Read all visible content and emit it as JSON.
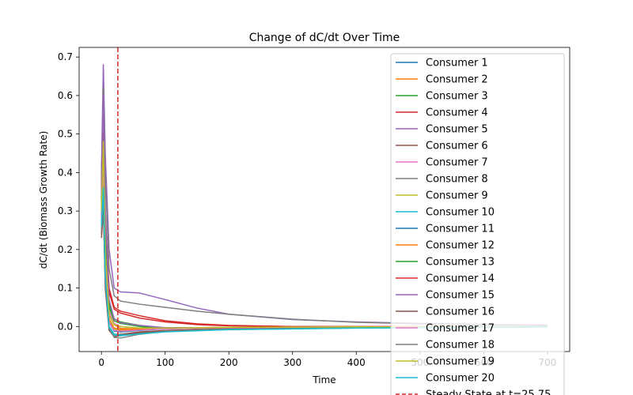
{
  "chart_data": {
    "type": "line",
    "title": "Change of dC/dt Over Time",
    "xlabel": "Time",
    "ylabel": "dC/dt (Biomass Growth Rate)",
    "xlim": [
      -35,
      735
    ],
    "ylim": [
      -0.065,
      0.725
    ],
    "xticks": [
      0,
      100,
      200,
      300,
      400,
      500,
      600,
      700
    ],
    "yticks": [
      0.0,
      0.1,
      0.2,
      0.3,
      0.4,
      0.5,
      0.6,
      0.7
    ],
    "grid": false,
    "legend_position": "top-right",
    "vline": {
      "x": 25.75,
      "label": "Steady State at t=25.75",
      "color": "#d62728",
      "style": "dashed"
    },
    "series": [
      {
        "name": "Consumer 1",
        "color": "#1f77b4",
        "points": [
          [
            0,
            0.3
          ],
          [
            3,
            0.42
          ],
          [
            6,
            0.18
          ],
          [
            12,
            0.02
          ],
          [
            20,
            -0.01
          ],
          [
            30,
            -0.012
          ],
          [
            60,
            -0.008
          ],
          [
            100,
            -0.005
          ],
          [
            200,
            -0.002
          ],
          [
            400,
            -0.001
          ],
          [
            700,
            0.0
          ]
        ]
      },
      {
        "name": "Consumer 2",
        "color": "#ff7f0e",
        "points": [
          [
            0,
            0.28
          ],
          [
            3,
            0.45
          ],
          [
            6,
            0.2
          ],
          [
            12,
            0.03
          ],
          [
            20,
            0.005
          ],
          [
            30,
            -0.005
          ],
          [
            60,
            -0.006
          ],
          [
            100,
            -0.004
          ],
          [
            200,
            -0.002
          ],
          [
            400,
            -0.001
          ],
          [
            700,
            0.0
          ]
        ]
      },
      {
        "name": "Consumer 3",
        "color": "#2ca02c",
        "points": [
          [
            0,
            0.32
          ],
          [
            3,
            0.52
          ],
          [
            6,
            0.25
          ],
          [
            12,
            0.06
          ],
          [
            20,
            0.02
          ],
          [
            30,
            0.012
          ],
          [
            60,
            0.003
          ],
          [
            100,
            -0.004
          ],
          [
            200,
            -0.004
          ],
          [
            400,
            -0.002
          ],
          [
            700,
            0.0
          ]
        ]
      },
      {
        "name": "Consumer 4",
        "color": "#d62728",
        "points": [
          [
            0,
            0.35
          ],
          [
            3,
            0.5
          ],
          [
            6,
            0.28
          ],
          [
            12,
            0.1
          ],
          [
            20,
            0.05
          ],
          [
            30,
            0.04
          ],
          [
            60,
            0.028
          ],
          [
            100,
            0.015
          ],
          [
            150,
            0.007
          ],
          [
            200,
            0.003
          ],
          [
            300,
            0.0
          ],
          [
            400,
            -0.001
          ],
          [
            700,
            0.0
          ]
        ]
      },
      {
        "name": "Consumer 5",
        "color": "#9467bd",
        "points": [
          [
            0,
            0.4
          ],
          [
            3,
            0.68
          ],
          [
            6,
            0.45
          ],
          [
            12,
            0.2
          ],
          [
            20,
            0.1
          ],
          [
            30,
            0.09
          ],
          [
            60,
            0.087
          ],
          [
            100,
            0.07
          ],
          [
            150,
            0.048
          ],
          [
            200,
            0.032
          ],
          [
            300,
            0.018
          ],
          [
            400,
            0.012
          ],
          [
            500,
            0.008
          ],
          [
            600,
            0.005
          ],
          [
            700,
            0.004
          ]
        ]
      },
      {
        "name": "Consumer 6",
        "color": "#8c564b",
        "points": [
          [
            0,
            0.23
          ],
          [
            3,
            0.3
          ],
          [
            6,
            0.12
          ],
          [
            12,
            0.0
          ],
          [
            20,
            -0.02
          ],
          [
            30,
            -0.02
          ],
          [
            60,
            -0.014
          ],
          [
            100,
            -0.01
          ],
          [
            200,
            -0.006
          ],
          [
            400,
            -0.003
          ],
          [
            700,
            -0.001
          ]
        ]
      },
      {
        "name": "Consumer 7",
        "color": "#e377c2",
        "points": [
          [
            0,
            0.3
          ],
          [
            3,
            0.5
          ],
          [
            6,
            0.22
          ],
          [
            12,
            0.04
          ],
          [
            20,
            0.008
          ],
          [
            30,
            0.0
          ],
          [
            60,
            -0.004
          ],
          [
            100,
            -0.004
          ],
          [
            200,
            -0.002
          ],
          [
            400,
            0.0
          ],
          [
            700,
            0.0
          ]
        ]
      },
      {
        "name": "Consumer 8",
        "color": "#7f7f7f",
        "points": [
          [
            0,
            0.38
          ],
          [
            3,
            0.62
          ],
          [
            6,
            0.4
          ],
          [
            12,
            0.15
          ],
          [
            20,
            0.08
          ],
          [
            30,
            0.066
          ],
          [
            60,
            0.058
          ],
          [
            100,
            0.05
          ],
          [
            150,
            0.04
          ],
          [
            200,
            0.032
          ],
          [
            300,
            0.019
          ],
          [
            400,
            0.011
          ],
          [
            500,
            0.007
          ],
          [
            600,
            0.004
          ],
          [
            700,
            0.003
          ]
        ]
      },
      {
        "name": "Consumer 9",
        "color": "#bcbd22",
        "points": [
          [
            0,
            0.26
          ],
          [
            3,
            0.4
          ],
          [
            6,
            0.15
          ],
          [
            12,
            0.02
          ],
          [
            20,
            -0.006
          ],
          [
            30,
            -0.01
          ],
          [
            60,
            -0.008
          ],
          [
            100,
            -0.005
          ],
          [
            200,
            -0.003
          ],
          [
            400,
            -0.001
          ],
          [
            700,
            0.0
          ]
        ]
      },
      {
        "name": "Consumer 10",
        "color": "#17becf",
        "points": [
          [
            0,
            0.27
          ],
          [
            3,
            0.38
          ],
          [
            6,
            0.14
          ],
          [
            12,
            0.0
          ],
          [
            20,
            -0.02
          ],
          [
            30,
            -0.022
          ],
          [
            60,
            -0.018
          ],
          [
            100,
            -0.013
          ],
          [
            200,
            -0.008
          ],
          [
            400,
            -0.004
          ],
          [
            700,
            -0.001
          ]
        ]
      },
      {
        "name": "Consumer 11",
        "color": "#1f77b4",
        "points": [
          [
            0,
            0.29
          ],
          [
            3,
            0.44
          ],
          [
            6,
            0.17
          ],
          [
            12,
            0.01
          ],
          [
            20,
            -0.012
          ],
          [
            30,
            -0.014
          ],
          [
            60,
            -0.01
          ],
          [
            100,
            -0.006
          ],
          [
            200,
            -0.003
          ],
          [
            400,
            -0.001
          ],
          [
            700,
            0.0
          ]
        ]
      },
      {
        "name": "Consumer 12",
        "color": "#ff7f0e",
        "points": [
          [
            0,
            0.31
          ],
          [
            3,
            0.46
          ],
          [
            6,
            0.19
          ],
          [
            12,
            0.02
          ],
          [
            20,
            -0.004
          ],
          [
            30,
            -0.008
          ],
          [
            60,
            -0.007
          ],
          [
            100,
            -0.005
          ],
          [
            200,
            -0.003
          ],
          [
            400,
            -0.001
          ],
          [
            700,
            0.0
          ]
        ]
      },
      {
        "name": "Consumer 13",
        "color": "#2ca02c",
        "points": [
          [
            0,
            0.33
          ],
          [
            3,
            0.55
          ],
          [
            6,
            0.26
          ],
          [
            12,
            0.05
          ],
          [
            20,
            0.015
          ],
          [
            30,
            0.008
          ],
          [
            60,
            0.0
          ],
          [
            100,
            -0.005
          ],
          [
            200,
            -0.004
          ],
          [
            400,
            -0.002
          ],
          [
            700,
            0.0
          ]
        ]
      },
      {
        "name": "Consumer 14",
        "color": "#d62728",
        "points": [
          [
            0,
            0.36
          ],
          [
            3,
            0.58
          ],
          [
            6,
            0.3
          ],
          [
            12,
            0.09
          ],
          [
            20,
            0.045
          ],
          [
            30,
            0.035
          ],
          [
            60,
            0.022
          ],
          [
            100,
            0.012
          ],
          [
            150,
            0.005
          ],
          [
            200,
            0.002
          ],
          [
            300,
            0.0
          ],
          [
            700,
            0.0
          ]
        ]
      },
      {
        "name": "Consumer 15",
        "color": "#9467bd",
        "points": [
          [
            0,
            0.34
          ],
          [
            3,
            0.6
          ],
          [
            6,
            0.3
          ],
          [
            12,
            0.07
          ],
          [
            20,
            0.02
          ],
          [
            30,
            0.01
          ],
          [
            60,
            0.003
          ],
          [
            100,
            -0.003
          ],
          [
            200,
            -0.003
          ],
          [
            400,
            -0.001
          ],
          [
            700,
            0.0
          ]
        ]
      },
      {
        "name": "Consumer 16",
        "color": "#8c564b",
        "points": [
          [
            0,
            0.24
          ],
          [
            3,
            0.32
          ],
          [
            6,
            0.1
          ],
          [
            12,
            -0.01
          ],
          [
            20,
            -0.026
          ],
          [
            30,
            -0.024
          ],
          [
            60,
            -0.016
          ],
          [
            100,
            -0.011
          ],
          [
            200,
            -0.006
          ],
          [
            400,
            -0.003
          ],
          [
            700,
            -0.001
          ]
        ]
      },
      {
        "name": "Consumer 17",
        "color": "#e377c2",
        "points": [
          [
            0,
            0.28
          ],
          [
            3,
            0.42
          ],
          [
            6,
            0.16
          ],
          [
            12,
            0.01
          ],
          [
            20,
            -0.01
          ],
          [
            30,
            -0.012
          ],
          [
            60,
            -0.009
          ],
          [
            100,
            -0.006
          ],
          [
            200,
            -0.003
          ],
          [
            400,
            -0.001
          ],
          [
            700,
            0.0
          ]
        ]
      },
      {
        "name": "Consumer 18",
        "color": "#7f7f7f",
        "points": [
          [
            0,
            0.25
          ],
          [
            3,
            0.35
          ],
          [
            6,
            0.12
          ],
          [
            12,
            -0.005
          ],
          [
            20,
            -0.028
          ],
          [
            30,
            -0.03
          ],
          [
            60,
            -0.02
          ],
          [
            100,
            -0.013
          ],
          [
            200,
            -0.007
          ],
          [
            400,
            -0.003
          ],
          [
            700,
            -0.001
          ]
        ]
      },
      {
        "name": "Consumer 19",
        "color": "#bcbd22",
        "points": [
          [
            0,
            0.3
          ],
          [
            3,
            0.48
          ],
          [
            6,
            0.2
          ],
          [
            12,
            0.03
          ],
          [
            20,
            0.005
          ],
          [
            30,
            0.0
          ],
          [
            60,
            -0.004
          ],
          [
            100,
            -0.004
          ],
          [
            200,
            -0.002
          ],
          [
            400,
            -0.001
          ],
          [
            700,
            0.0
          ]
        ]
      },
      {
        "name": "Consumer 20",
        "color": "#17becf",
        "points": [
          [
            0,
            0.26
          ],
          [
            3,
            0.36
          ],
          [
            6,
            0.13
          ],
          [
            12,
            -0.002
          ],
          [
            20,
            -0.022
          ],
          [
            30,
            -0.024
          ],
          [
            60,
            -0.019
          ],
          [
            100,
            -0.014
          ],
          [
            200,
            -0.008
          ],
          [
            400,
            -0.004
          ],
          [
            700,
            -0.001
          ]
        ]
      }
    ]
  }
}
